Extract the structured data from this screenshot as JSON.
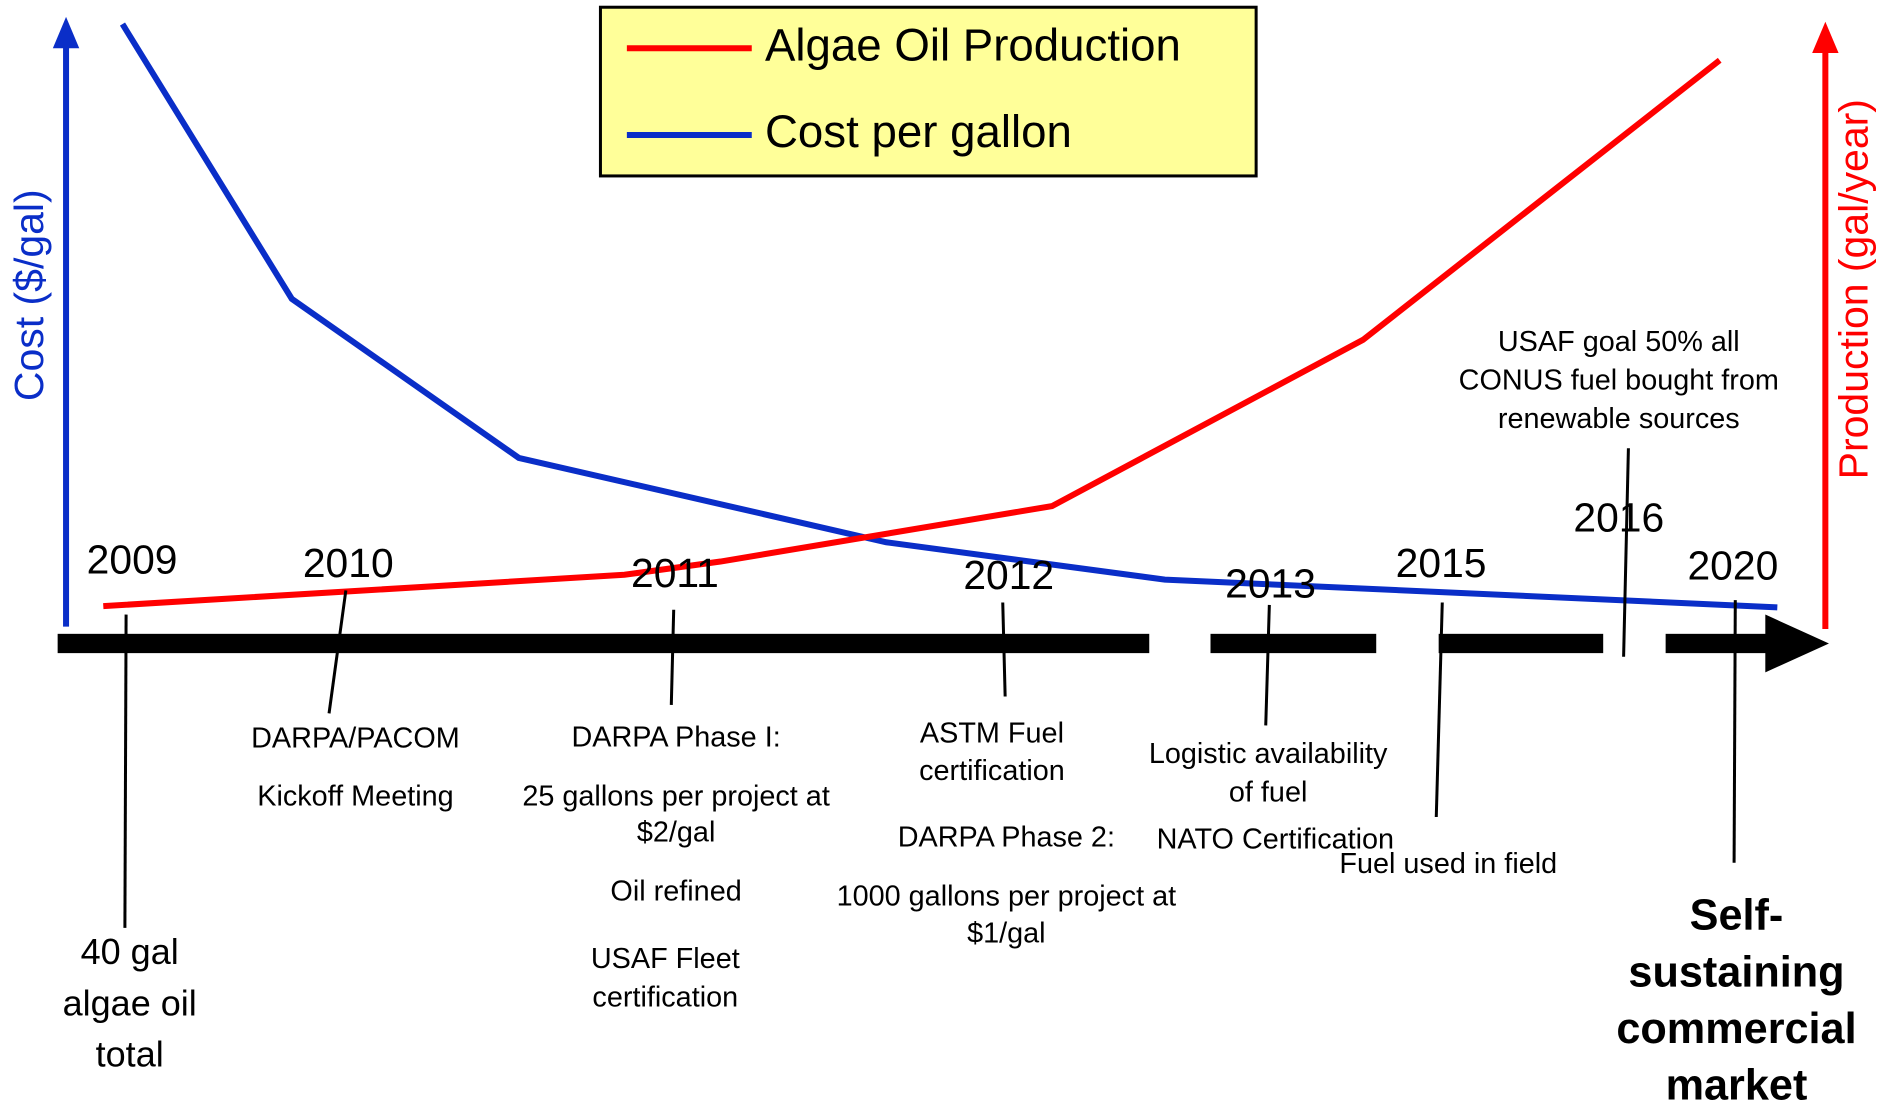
{
  "legend": [
    {
      "label": "Algae Oil Production",
      "color": "#ff0000"
    },
    {
      "label": "Cost per gallon",
      "color": "#0a2ec8"
    }
  ],
  "axes": {
    "left": "Cost ($/gal)",
    "right": "Production (gal/year)"
  },
  "years": [
    "2009",
    "2010",
    "2011",
    "2012",
    "2013",
    "2015",
    "2016",
    "2020"
  ],
  "annotations": [
    "40 gal",
    "algae oil",
    "total",
    "DARPA/PACOM",
    "Kickoff Meeting",
    "DARPA Phase I:",
    "25 gallons per project at",
    "$2/gal",
    "Oil refined",
    "USAF Fleet",
    "certification",
    "ASTM Fuel",
    "certification",
    "DARPA Phase 2:",
    "1000 gallons per project at",
    "$1/gal",
    "Logistic availability",
    "of fuel",
    "NATO Certification",
    "Fuel used in field",
    "USAF goal 50% all",
    "CONUS fuel bought from",
    "renewable sources",
    "Self-",
    "sustaining",
    "commercial",
    "market"
  ]
}
